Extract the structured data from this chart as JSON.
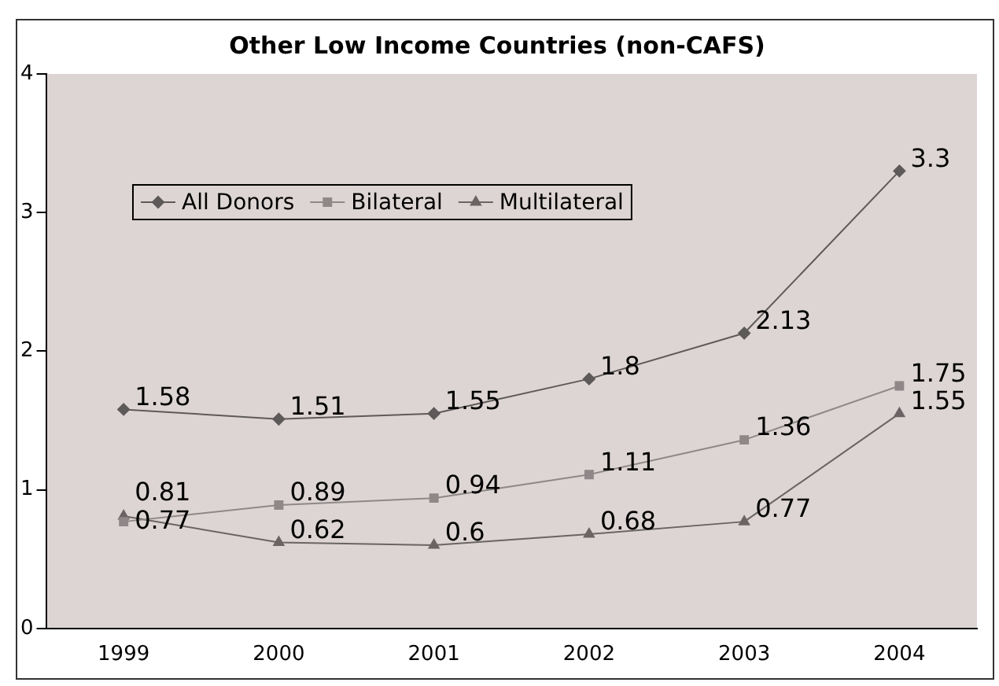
{
  "chart_data": {
    "type": "line",
    "title": "Other Low Income Countries (non-CAFS)",
    "categories": [
      "1999",
      "2000",
      "2001",
      "2002",
      "2003",
      "2004"
    ],
    "series": [
      {
        "name": "All Donors",
        "color": "#5e5a5a",
        "marker": "diamond",
        "values": [
          1.58,
          1.51,
          1.55,
          1.8,
          2.13,
          3.3
        ]
      },
      {
        "name": "Bilateral",
        "color": "#8e8888",
        "marker": "square",
        "values": [
          0.77,
          0.89,
          0.94,
          1.11,
          1.36,
          1.75
        ]
      },
      {
        "name": "Multilateral",
        "color": "#6a6464",
        "marker": "triangle",
        "values": [
          0.81,
          0.62,
          0.6,
          0.68,
          0.77,
          1.55
        ]
      }
    ],
    "ylim": [
      0,
      4
    ],
    "yticks": [
      0,
      1,
      2,
      3,
      4
    ],
    "grid": false,
    "legend": "top left",
    "data_labels": true,
    "line_style": "solid"
  }
}
